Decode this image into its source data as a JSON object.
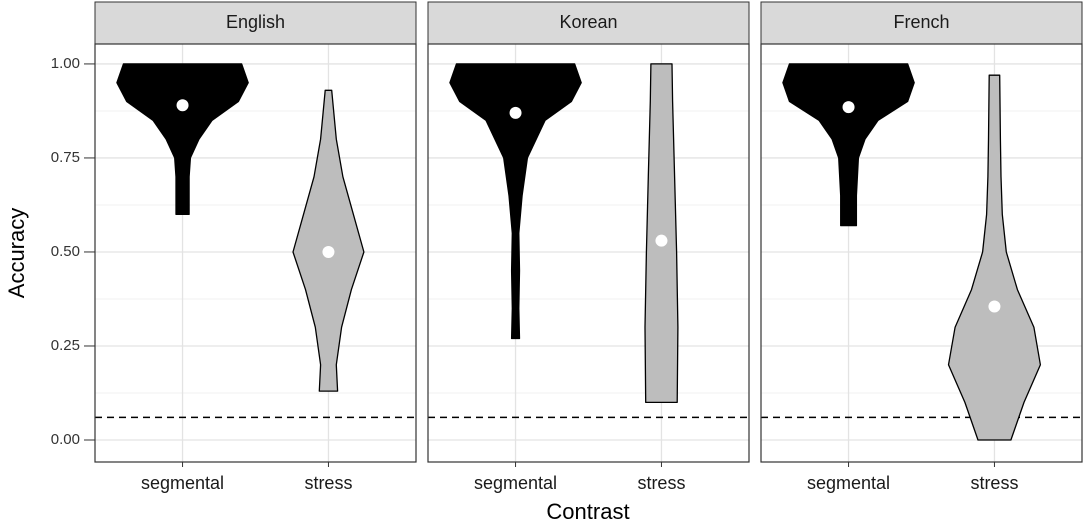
{
  "chart_data": {
    "type": "violin",
    "xlabel": "Contrast",
    "ylabel": "Accuracy",
    "categories": [
      "segmental",
      "stress"
    ],
    "colors": [
      "#000000",
      "#bdbdbd"
    ],
    "mean_color": "#ffffff",
    "ylim": [
      -0.0585,
      1.053
    ],
    "yticks": [
      {
        "value": 0,
        "label": "0.00"
      },
      {
        "value": 0.25,
        "label": "0.25"
      },
      {
        "value": 0.5,
        "label": "0.50"
      },
      {
        "value": 0.75,
        "label": "0.75"
      },
      {
        "value": 1,
        "label": "1.00"
      }
    ],
    "yminor": [
      0.125,
      0.375,
      0.625,
      0.875
    ],
    "grid": true,
    "reference_line": 0.06,
    "facets": [
      {
        "title": "English",
        "violins": [
          {
            "mean": 0.89,
            "levels": [
              0.6,
              0.65,
              0.7,
              0.75,
              0.8,
              0.85,
              0.9,
              0.95,
              1.0
            ],
            "widths": [
              0.1,
              0.1,
              0.1,
              0.12,
              0.25,
              0.45,
              0.85,
              1.0,
              0.9
            ]
          },
          {
            "mean": 0.5,
            "levels": [
              0.13,
              0.2,
              0.3,
              0.4,
              0.5,
              0.6,
              0.7,
              0.8,
              0.93
            ],
            "widths": [
              0.14,
              0.12,
              0.2,
              0.35,
              0.54,
              0.38,
              0.22,
              0.12,
              0.05
            ]
          }
        ]
      },
      {
        "title": "Korean",
        "violins": [
          {
            "mean": 0.87,
            "levels": [
              0.27,
              0.35,
              0.45,
              0.55,
              0.65,
              0.75,
              0.85,
              0.9,
              0.95,
              1.0
            ],
            "widths": [
              0.06,
              0.05,
              0.06,
              0.05,
              0.1,
              0.18,
              0.45,
              0.85,
              1.0,
              0.9
            ]
          },
          {
            "mean": 0.53,
            "levels": [
              0.1,
              0.3,
              0.5,
              0.7,
              0.9,
              1.0
            ],
            "widths": [
              0.24,
              0.25,
              0.23,
              0.2,
              0.17,
              0.16
            ]
          }
        ]
      },
      {
        "title": "French",
        "violins": [
          {
            "mean": 0.885,
            "levels": [
              0.57,
              0.65,
              0.75,
              0.8,
              0.85,
              0.9,
              0.95,
              1.0
            ],
            "widths": [
              0.12,
              0.12,
              0.15,
              0.25,
              0.45,
              0.9,
              1.0,
              0.9
            ]
          },
          {
            "mean": 0.355,
            "levels": [
              0,
              0.1,
              0.2,
              0.3,
              0.4,
              0.5,
              0.6,
              0.7,
              0.8,
              0.97
            ],
            "widths": [
              0.25,
              0.45,
              0.7,
              0.6,
              0.35,
              0.18,
              0.12,
              0.1,
              0.09,
              0.08
            ]
          }
        ]
      }
    ]
  }
}
